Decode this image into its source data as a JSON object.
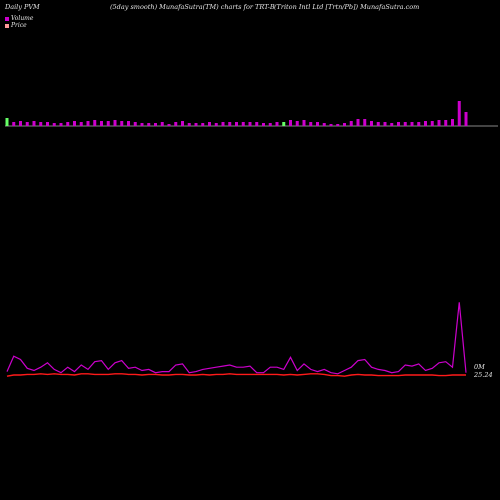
{
  "header": {
    "left": "Daily PVM",
    "middle": "(5day smooth) MunafaSutra(TM) charts for TRT-B",
    "right": "(Triton  Intl Ltd [Trtn/Pb]) MunafaSutra.com"
  },
  "chart_data": [
    {
      "type": "bar",
      "series": [
        {
          "name": "Volume",
          "color": "#cc00cc",
          "values": [
            8,
            4,
            5,
            4,
            5,
            4,
            4,
            3,
            3,
            4,
            5,
            4,
            5,
            6,
            5,
            5,
            6,
            5,
            5,
            4,
            3,
            3,
            3,
            4,
            2,
            4,
            5,
            3,
            3,
            3,
            4,
            3,
            4,
            4,
            4,
            4,
            4,
            4,
            3,
            3,
            4,
            4,
            6,
            5,
            6,
            4,
            4,
            3,
            2,
            2,
            3,
            5,
            7,
            7,
            5,
            4,
            4,
            3,
            4,
            4,
            4,
            4,
            5,
            5,
            6,
            6,
            7,
            25,
            14
          ]
        }
      ],
      "down_bars": [
        0,
        41
      ],
      "down_color": "#66ff66"
    },
    {
      "type": "line",
      "series": [
        {
          "name": "Volume",
          "color": "#cc00cc",
          "values": [
            0.4,
            1.8,
            1.5,
            0.7,
            0.5,
            0.8,
            1.2,
            0.6,
            0.3,
            0.8,
            0.4,
            1.0,
            0.6,
            1.3,
            1.4,
            0.6,
            1.2,
            1.4,
            0.7,
            0.8,
            0.5,
            0.6,
            0.3,
            0.4,
            0.4,
            1.0,
            1.1,
            0.3,
            0.4,
            0.6,
            0.7,
            0.8,
            0.9,
            1.0,
            0.8,
            0.8,
            0.9,
            0.3,
            0.3,
            0.8,
            0.8,
            0.6,
            1.7,
            0.5,
            1.1,
            0.6,
            0.4,
            0.6,
            0.3,
            0.2,
            0.5,
            0.8,
            1.4,
            1.5,
            0.8,
            0.6,
            0.5,
            0.3,
            0.4,
            1.0,
            0.9,
            1.1,
            0.5,
            0.7,
            1.2,
            1.3,
            0.8,
            6.7,
            0.3
          ]
        },
        {
          "name": "Price",
          "color": "#ff1a1a",
          "values": [
            25.22,
            25.24,
            25.24,
            25.25,
            25.25,
            25.26,
            25.25,
            25.26,
            25.25,
            25.25,
            25.24,
            25.26,
            25.26,
            25.25,
            25.25,
            25.25,
            25.26,
            25.26,
            25.25,
            25.25,
            25.24,
            25.25,
            25.25,
            25.24,
            25.24,
            25.25,
            25.25,
            25.24,
            25.24,
            25.25,
            25.24,
            25.25,
            25.25,
            25.26,
            25.25,
            25.25,
            25.25,
            25.25,
            25.25,
            25.25,
            25.25,
            25.24,
            25.25,
            25.24,
            25.25,
            25.26,
            25.26,
            25.25,
            25.23,
            25.23,
            25.22,
            25.24,
            25.25,
            25.24,
            25.24,
            25.23,
            25.23,
            25.23,
            25.23,
            25.24,
            25.24,
            25.24,
            25.24,
            25.24,
            25.23,
            25.23,
            25.24,
            25.24,
            25.24
          ]
        }
      ],
      "volume_label": "0M",
      "price_label": "25.24"
    }
  ]
}
